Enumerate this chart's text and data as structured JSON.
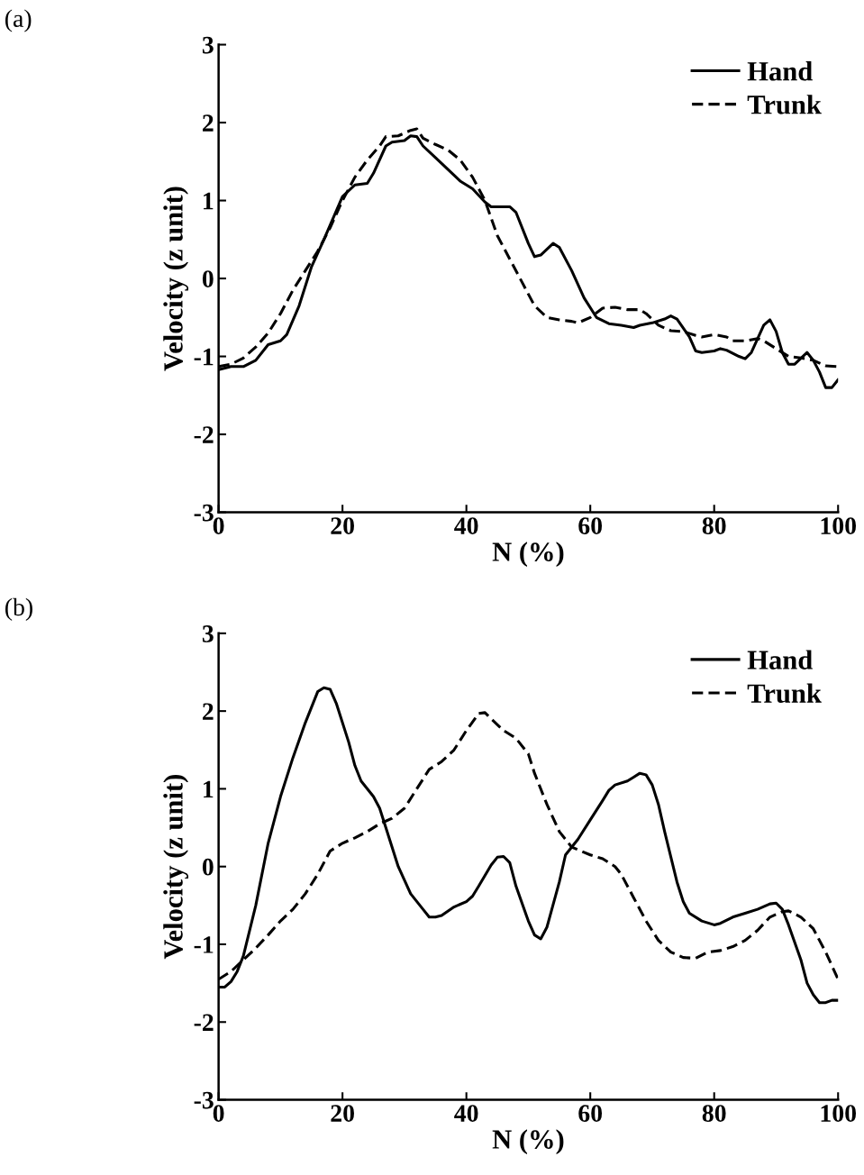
{
  "chart_data": [
    {
      "type": "line",
      "annotations": [
        "(a)"
      ],
      "xlabel": "N (%)",
      "ylabel": "Velocity (z unit)",
      "xlim": [
        0,
        100
      ],
      "xticks": [
        0,
        20,
        40,
        60,
        80,
        100
      ],
      "ylim": [
        -3,
        3
      ],
      "yticks": [
        -3,
        -2,
        -1,
        0,
        1,
        2,
        3
      ],
      "legend": "top right",
      "grid": false,
      "series": [
        {
          "name": "Hand",
          "color": "#000000",
          "line_style": "solid",
          "x": [
            0,
            2,
            4,
            6,
            8,
            10,
            11,
            13,
            15,
            17,
            20,
            22,
            24,
            25,
            27,
            28,
            30,
            31,
            32,
            33,
            35,
            37,
            39,
            41,
            43,
            44,
            47,
            48,
            50,
            51,
            52,
            54,
            55,
            57,
            59,
            61,
            63,
            65,
            67,
            68,
            70,
            72,
            73,
            74,
            76,
            77,
            78,
            80,
            81,
            82,
            84,
            85,
            86,
            88,
            89,
            90,
            91,
            92,
            93,
            95,
            96,
            97,
            98,
            99,
            100
          ],
          "values": [
            -1.17,
            -1.13,
            -1.13,
            -1.05,
            -0.85,
            -0.8,
            -0.72,
            -0.35,
            0.15,
            0.5,
            1.05,
            1.2,
            1.22,
            1.35,
            1.7,
            1.75,
            1.77,
            1.83,
            1.82,
            1.7,
            1.55,
            1.4,
            1.25,
            1.15,
            0.98,
            0.92,
            0.92,
            0.85,
            0.45,
            0.28,
            0.3,
            0.45,
            0.4,
            0.1,
            -0.25,
            -0.5,
            -0.58,
            -0.6,
            -0.63,
            -0.6,
            -0.57,
            -0.52,
            -0.48,
            -0.52,
            -0.75,
            -0.93,
            -0.95,
            -0.93,
            -0.9,
            -0.92,
            -1.0,
            -1.03,
            -0.95,
            -0.6,
            -0.53,
            -0.68,
            -0.95,
            -1.1,
            -1.1,
            -0.95,
            -1.05,
            -1.2,
            -1.4,
            -1.4,
            -1.3
          ]
        },
        {
          "name": "Trunk",
          "color": "#000000",
          "line_style": "dashed",
          "x": [
            0,
            2,
            4,
            6,
            8,
            10,
            12,
            14,
            16,
            18,
            20,
            22,
            24,
            26,
            27,
            29,
            31,
            32,
            33,
            35,
            37,
            39,
            41,
            43,
            45,
            47,
            49,
            51,
            53,
            55,
            57,
            58,
            60,
            62,
            64,
            66,
            68,
            69,
            71,
            73,
            75,
            77,
            78,
            80,
            82,
            83,
            85,
            87,
            88,
            90,
            92,
            94,
            96,
            98,
            100
          ],
          "values": [
            -1.13,
            -1.1,
            -1.02,
            -0.88,
            -0.7,
            -0.45,
            -0.15,
            0.1,
            0.35,
            0.65,
            1.0,
            1.3,
            1.52,
            1.7,
            1.82,
            1.83,
            1.9,
            1.92,
            1.8,
            1.72,
            1.65,
            1.52,
            1.3,
            1.0,
            0.55,
            0.25,
            -0.05,
            -0.35,
            -0.5,
            -0.53,
            -0.55,
            -0.57,
            -0.5,
            -0.38,
            -0.37,
            -0.4,
            -0.4,
            -0.45,
            -0.6,
            -0.67,
            -0.68,
            -0.73,
            -0.75,
            -0.72,
            -0.75,
            -0.8,
            -0.8,
            -0.77,
            -0.8,
            -0.9,
            -1.0,
            -1.02,
            -1.05,
            -1.12,
            -1.13
          ]
        }
      ]
    },
    {
      "type": "line",
      "annotations": [
        "(b)"
      ],
      "xlabel": "N (%)",
      "ylabel": "Velocity (z unit)",
      "xlim": [
        0,
        100
      ],
      "xticks": [
        0,
        20,
        40,
        60,
        80,
        100
      ],
      "ylim": [
        -3,
        3
      ],
      "yticks": [
        -3,
        -2,
        -1,
        0,
        1,
        2,
        3
      ],
      "legend": "top right",
      "grid": false,
      "series": [
        {
          "name": "Hand",
          "color": "#000000",
          "line_style": "solid",
          "x": [
            0,
            1,
            2,
            3,
            4,
            6,
            8,
            10,
            12,
            14,
            16,
            17,
            18,
            19,
            21,
            22,
            23,
            25,
            26,
            27,
            29,
            31,
            33,
            34,
            35,
            36,
            38,
            40,
            41,
            42,
            44,
            45,
            46,
            47,
            48,
            50,
            51,
            52,
            53,
            55,
            56,
            58,
            60,
            62,
            63,
            64,
            66,
            67,
            68,
            69,
            70,
            71,
            72,
            74,
            75,
            76,
            78,
            80,
            81,
            83,
            85,
            87,
            89,
            90,
            91,
            92,
            94,
            95,
            96,
            97,
            98,
            99,
            100
          ],
          "values": [
            -1.55,
            -1.55,
            -1.48,
            -1.35,
            -1.15,
            -0.5,
            0.3,
            0.9,
            1.4,
            1.85,
            2.25,
            2.3,
            2.28,
            2.1,
            1.6,
            1.3,
            1.1,
            0.9,
            0.75,
            0.5,
            0.0,
            -0.35,
            -0.55,
            -0.65,
            -0.65,
            -0.63,
            -0.52,
            -0.45,
            -0.38,
            -0.25,
            0.02,
            0.12,
            0.13,
            0.05,
            -0.25,
            -0.7,
            -0.88,
            -0.93,
            -0.78,
            -0.2,
            0.15,
            0.35,
            0.6,
            0.85,
            0.98,
            1.05,
            1.1,
            1.15,
            1.2,
            1.18,
            1.05,
            0.8,
            0.45,
            -0.2,
            -0.45,
            -0.6,
            -0.7,
            -0.75,
            -0.73,
            -0.65,
            -0.6,
            -0.55,
            -0.48,
            -0.47,
            -0.55,
            -0.75,
            -1.2,
            -1.5,
            -1.65,
            -1.75,
            -1.75,
            -1.72,
            -1.72
          ]
        },
        {
          "name": "Trunk",
          "color": "#000000",
          "line_style": "dashed",
          "x": [
            0,
            2,
            4,
            6,
            8,
            10,
            12,
            14,
            16,
            18,
            20,
            22,
            24,
            26,
            28,
            30,
            32,
            34,
            36,
            38,
            40,
            42,
            43,
            44,
            46,
            48,
            50,
            51,
            53,
            55,
            57,
            60,
            62,
            64,
            65,
            67,
            69,
            71,
            73,
            75,
            77,
            79,
            81,
            83,
            85,
            87,
            89,
            91,
            92,
            94,
            96,
            98,
            100
          ],
          "values": [
            -1.45,
            -1.35,
            -1.2,
            -1.05,
            -0.88,
            -0.7,
            -0.55,
            -0.35,
            -0.1,
            0.2,
            0.3,
            0.37,
            0.45,
            0.55,
            0.62,
            0.75,
            1.0,
            1.25,
            1.35,
            1.5,
            1.75,
            1.97,
            1.98,
            1.9,
            1.75,
            1.65,
            1.45,
            1.2,
            0.8,
            0.45,
            0.25,
            0.15,
            0.1,
            0.0,
            -0.1,
            -0.4,
            -0.7,
            -0.95,
            -1.1,
            -1.17,
            -1.18,
            -1.1,
            -1.08,
            -1.03,
            -0.95,
            -0.82,
            -0.65,
            -0.58,
            -0.57,
            -0.65,
            -0.8,
            -1.1,
            -1.45
          ]
        }
      ]
    }
  ]
}
